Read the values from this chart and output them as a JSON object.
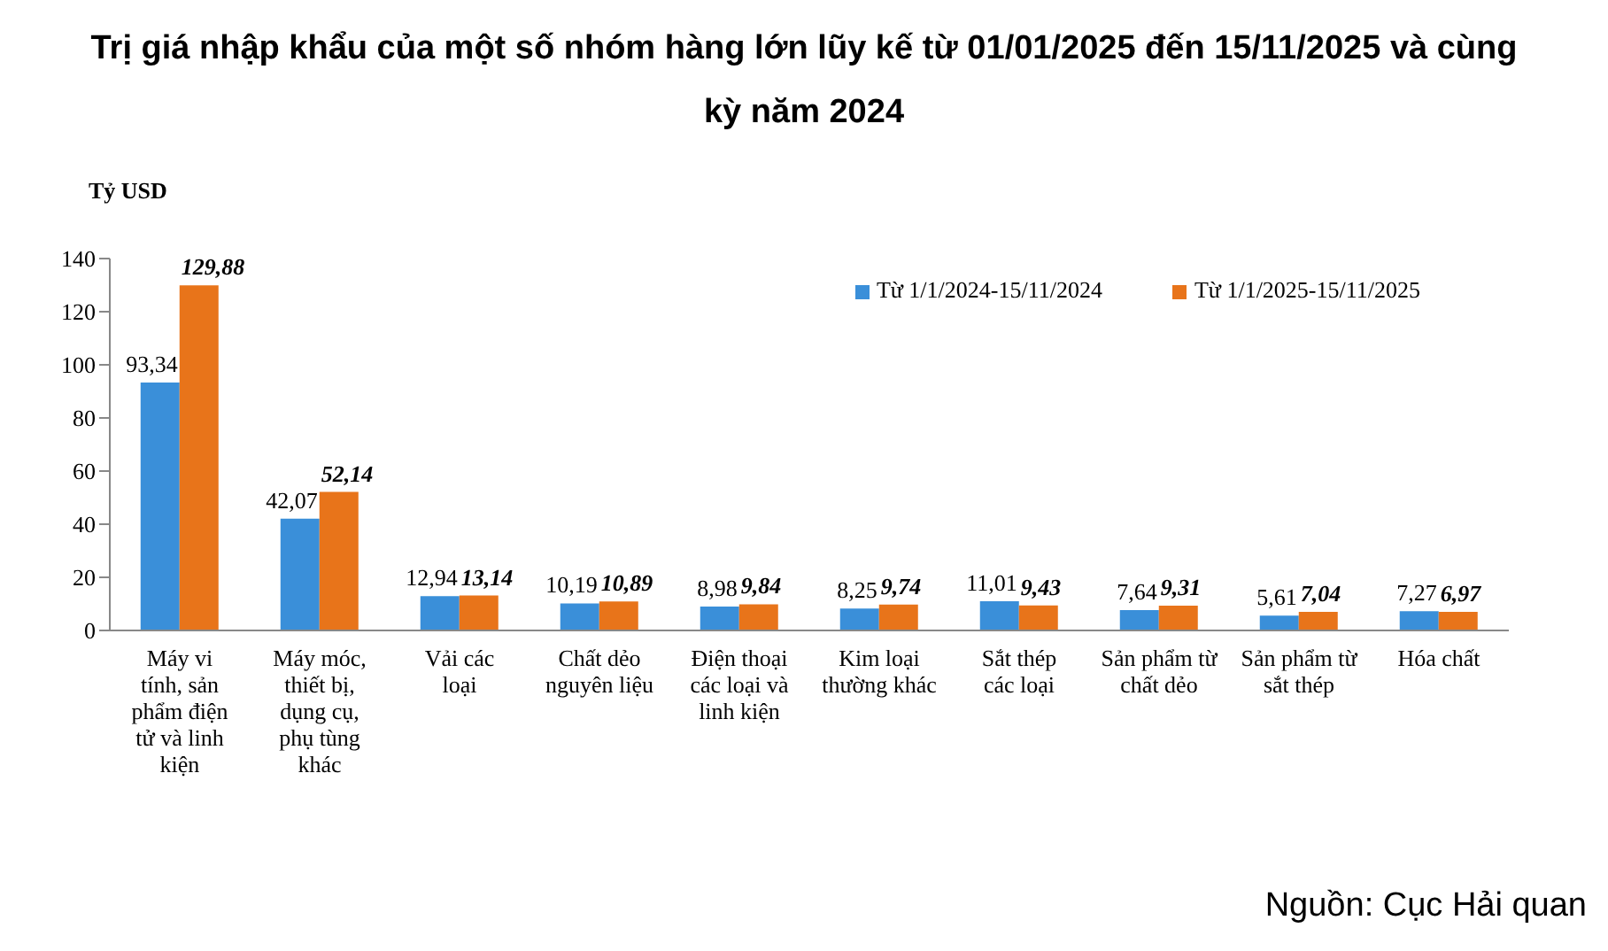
{
  "chart_data": {
    "type": "bar",
    "title": "Trị giá nhập khẩu của một số nhóm hàng lớn lũy kế từ 01/01/2025 đến 15/11/2025 và cùng kỳ năm 2024",
    "ylabel": "Tỷ USD",
    "categories": [
      "Máy vi tính, sản phẩm điện tử và linh kiện",
      "Máy móc, thiết bị, dụng cụ, phụ tùng khác",
      "Vải các loại",
      "Chất dẻo nguyên liệu",
      "Điện thoại các loại và linh kiện",
      "Kim loại thường khác",
      "Sắt thép các loại",
      "Sản phẩm từ chất dẻo",
      "Sản phẩm từ sắt thép",
      "Hóa chất"
    ],
    "series": [
      {
        "name": "Từ 1/1/2024-15/11/2024",
        "color": "#3a8fd9",
        "values": [
          93.34,
          42.07,
          12.94,
          10.19,
          8.98,
          8.25,
          11.01,
          7.64,
          5.61,
          7.27
        ],
        "value_labels": [
          "93,34",
          "42,07",
          "12,94",
          "10,19",
          "8,98",
          "8,25",
          "11,01",
          "7,64",
          "5,61",
          "7,27"
        ]
      },
      {
        "name": "Từ 1/1/2025-15/11/2025",
        "color": "#e8741a",
        "values": [
          129.88,
          52.14,
          13.14,
          10.89,
          9.84,
          9.74,
          9.43,
          9.31,
          7.04,
          6.97
        ],
        "value_labels": [
          "129,88",
          "52,14",
          "13,14",
          "10,89",
          "9,84",
          "9,74",
          "9,43",
          "9,31",
          "7,04",
          "6,97"
        ]
      }
    ],
    "ylim": [
      0,
      140
    ],
    "yticks": [
      0,
      20,
      40,
      60,
      80,
      100,
      120,
      140
    ],
    "grid": false,
    "legend": "top right",
    "annotations": [
      "Nguồn: Cục Hải quan"
    ]
  }
}
